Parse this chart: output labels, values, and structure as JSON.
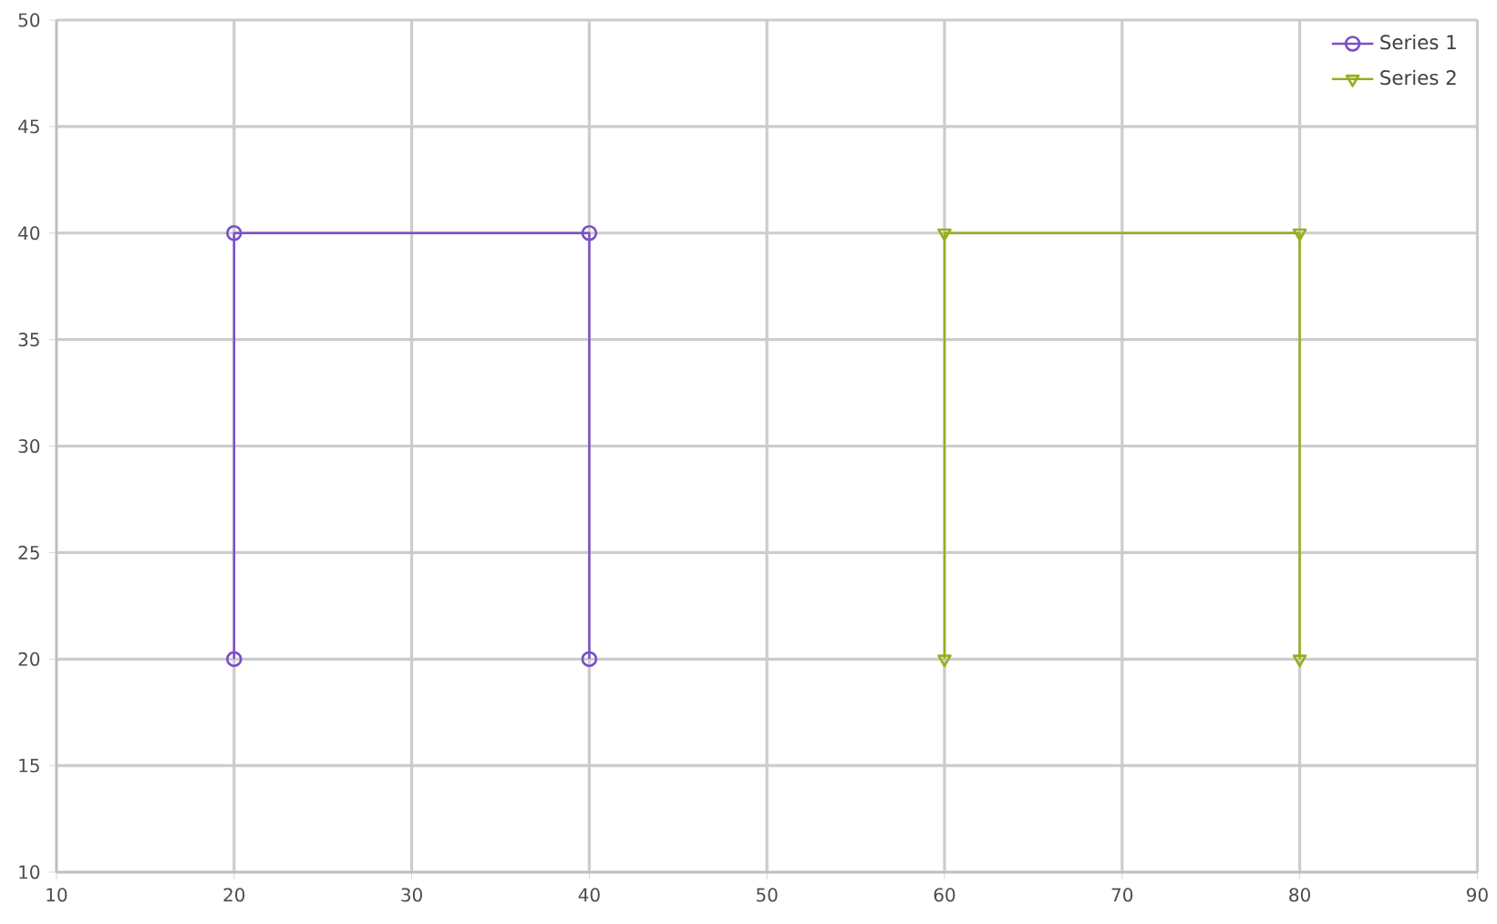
{
  "chart_data": {
    "type": "line",
    "series": [
      {
        "name": "Series 1",
        "color": "#7b4fc6",
        "marker": "circle",
        "x": [
          20,
          20,
          40,
          40
        ],
        "values": [
          20,
          40,
          40,
          20
        ]
      },
      {
        "name": "Series 2",
        "color": "#94b01e",
        "marker": "triangle",
        "x": [
          60,
          60,
          80,
          80
        ],
        "values": [
          20,
          40,
          40,
          20
        ]
      }
    ],
    "xlim": [
      10,
      90
    ],
    "xticks": [
      10,
      20,
      30,
      40,
      50,
      60,
      70,
      80,
      90
    ],
    "ylim": [
      10,
      50
    ],
    "yticks": [
      10,
      15,
      20,
      25,
      30,
      35,
      40,
      45,
      50
    ],
    "grid": true,
    "legend": "top right"
  }
}
